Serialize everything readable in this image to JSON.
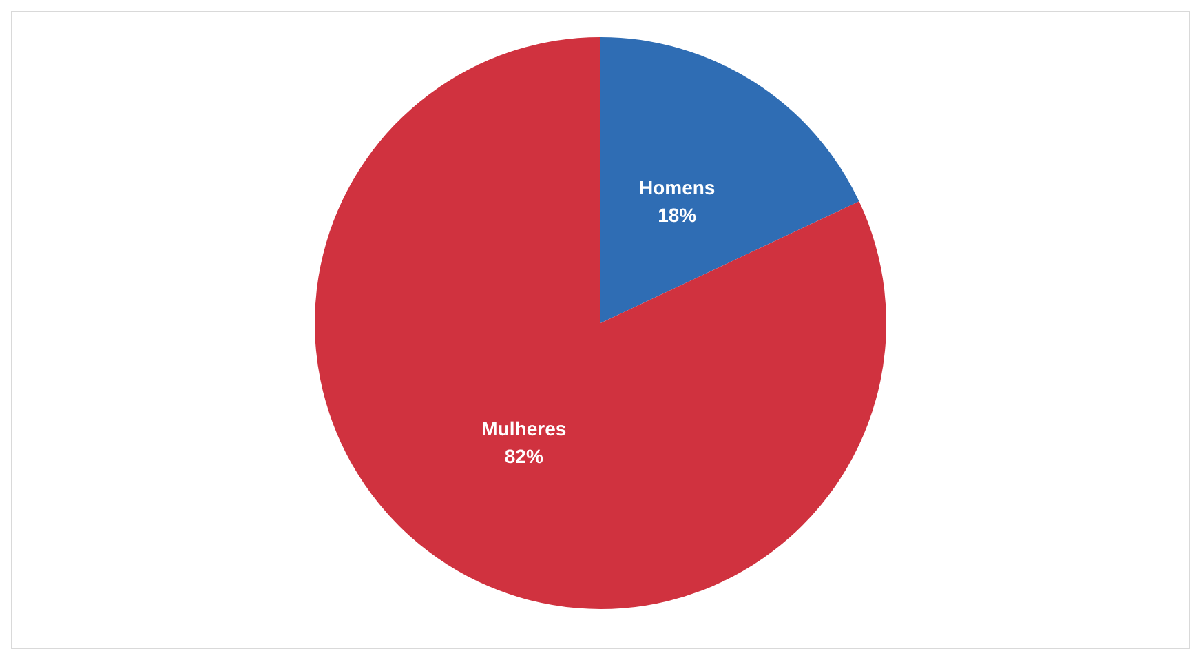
{
  "chart_data": {
    "type": "pie",
    "categories": [
      "Homens",
      "Mulheres"
    ],
    "values": [
      18,
      82
    ],
    "colors": [
      "#2f6db4",
      "#d0323f"
    ],
    "value_labels": [
      "18%",
      "82%"
    ],
    "legend": false
  }
}
